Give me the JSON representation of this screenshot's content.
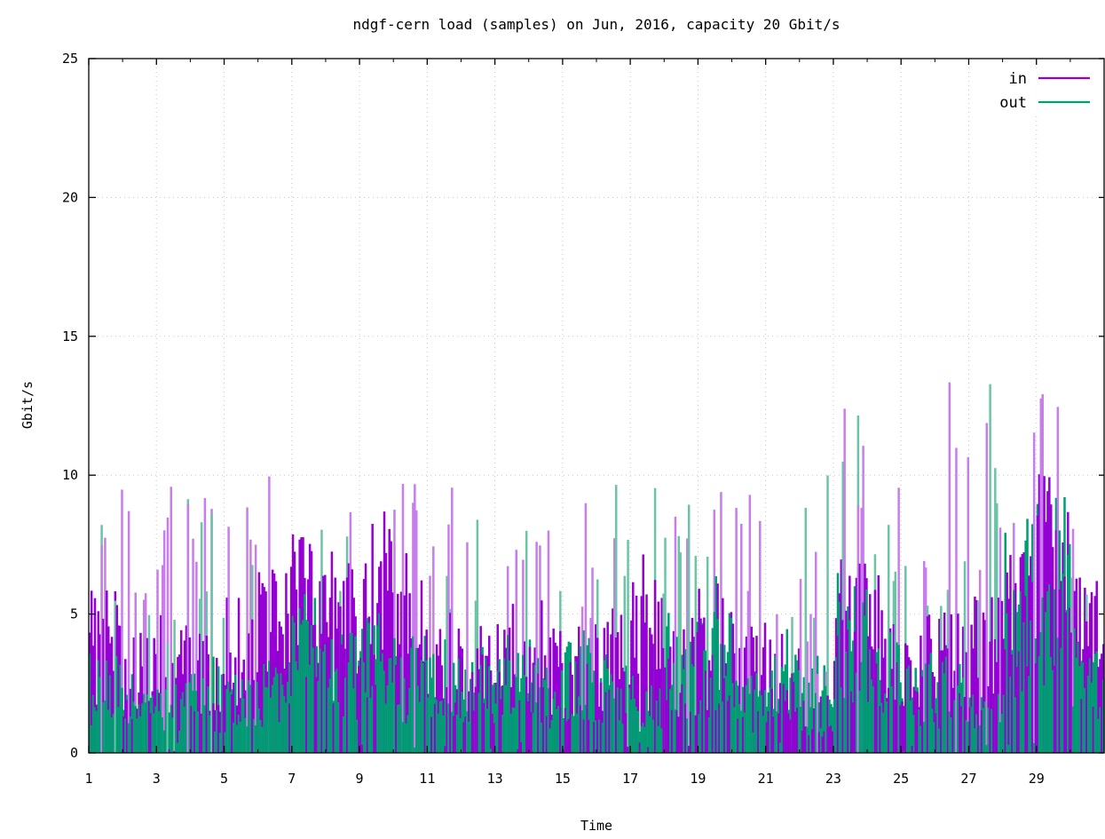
{
  "chart_data": {
    "type": "bar",
    "title": "ndgf-cern load (samples) on Jun, 2016, capacity 20 Gbit/s",
    "xlabel": "Time",
    "ylabel": "Gbit/s",
    "xlim": [
      1,
      31
    ],
    "ylim": [
      0,
      25
    ],
    "x_ticks": [
      "1",
      "3",
      "5",
      "7",
      "9",
      "11",
      "13",
      "15",
      "17",
      "19",
      "21",
      "23",
      "25",
      "27",
      "29"
    ],
    "y_ticks": [
      "0",
      "5",
      "10",
      "15",
      "20",
      "25"
    ],
    "grid": true,
    "legend_position": "top-right",
    "sample_interval_days": 0.05,
    "colors": {
      "in": "#9400d3",
      "in_peak": "#c77dea",
      "out": "#009e73",
      "out_peak": "#6cc4a6"
    },
    "series": [
      {
        "name": "in",
        "description": "in-traffic per day: typical level and peak",
        "days": [
          1,
          2,
          3,
          4,
          5,
          6,
          7,
          8,
          9,
          10,
          11,
          12,
          13,
          14,
          15,
          16,
          17,
          18,
          19,
          20,
          21,
          22,
          23,
          24,
          25,
          26,
          27,
          28,
          29,
          30
        ],
        "typical": [
          4.5,
          3.0,
          4.0,
          3.5,
          4.0,
          4.5,
          5.5,
          5.0,
          5.5,
          5.0,
          3.5,
          3.0,
          3.5,
          3.5,
          3.0,
          3.5,
          4.5,
          3.5,
          4.0,
          3.5,
          3.0,
          1.5,
          5.0,
          4.5,
          3.5,
          3.5,
          4.0,
          5.0,
          7.0,
          4.5
        ],
        "peak": [
          9.8,
          9.7,
          10.0,
          9.8,
          9.8,
          10.0,
          9.8,
          9.8,
          10.2,
          9.8,
          9.8,
          9.7,
          9.7,
          9.8,
          9.7,
          9.7,
          9.8,
          9.7,
          9.7,
          9.8,
          9.7,
          10.0,
          12.8,
          10.5,
          11.9,
          13.7,
          13.3,
          12.6,
          14.9,
          9.6
        ]
      },
      {
        "name": "out",
        "description": "out-traffic per day: typical level and peak",
        "days": [
          1,
          2,
          3,
          4,
          5,
          6,
          7,
          8,
          9,
          10,
          11,
          12,
          13,
          14,
          15,
          16,
          17,
          18,
          19,
          20,
          21,
          22,
          23,
          24,
          25,
          26,
          27,
          28,
          29,
          30
        ],
        "typical": [
          2.5,
          1.5,
          1.8,
          2.0,
          2.0,
          2.5,
          4.0,
          3.0,
          3.5,
          3.0,
          2.5,
          2.5,
          2.5,
          2.5,
          3.0,
          2.5,
          2.0,
          3.5,
          3.5,
          2.0,
          2.5,
          2.5,
          5.0,
          3.0,
          2.5,
          2.5,
          1.5,
          4.5,
          5.0,
          3.0
        ],
        "peak": [
          9.6,
          9.7,
          9.8,
          9.8,
          8.3,
          10.0,
          9.6,
          9.6,
          9.7,
          9.6,
          9.7,
          9.7,
          9.7,
          9.8,
          9.6,
          9.7,
          9.6,
          9.8,
          9.7,
          9.6,
          8.6,
          10.2,
          12.5,
          9.0,
          8.1,
          8.2,
          14.2,
          9.0,
          10.5,
          6.5
        ]
      }
    ]
  }
}
